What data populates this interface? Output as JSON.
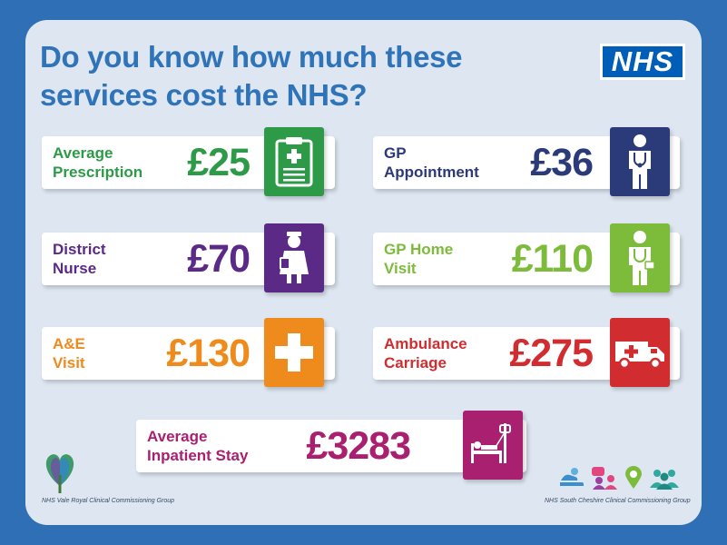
{
  "title_line1": "Do you know how much these",
  "title_line2": "services cost the NHS?",
  "logo": "NHS",
  "services": [
    {
      "line1": "Average",
      "line2": "Prescription",
      "price": "£25",
      "color": "#2d9a47",
      "icon": "prescription-clipboard-icon"
    },
    {
      "line1": "GP",
      "line2": "Appointment",
      "price": "£36",
      "color": "#2b3a78",
      "icon": "doctor-icon"
    },
    {
      "line1": "District",
      "line2": "Nurse",
      "price": "£70",
      "color": "#5b2a86",
      "icon": "nurse-icon"
    },
    {
      "line1": "GP Home",
      "line2": "Visit",
      "price": "£110",
      "color": "#7dbb3a",
      "icon": "home-visit-doctor-icon"
    },
    {
      "line1": "A&E",
      "line2": "Visit",
      "price": "£130",
      "color": "#ef8b1d",
      "icon": "medical-cross-icon"
    },
    {
      "line1": "Ambulance",
      "line2": "Carriage",
      "price": "£275",
      "color": "#d12c2f",
      "icon": "ambulance-icon"
    },
    {
      "line1": "Average",
      "line2": "Inpatient Stay",
      "price": "£3283",
      "color": "#a8206f",
      "icon": "hospital-bed-icon"
    }
  ],
  "footer_left": "NHS Vale Royal Clinical Commissioning Group",
  "footer_right": "NHS South Cheshire Clinical Commissioning Group"
}
